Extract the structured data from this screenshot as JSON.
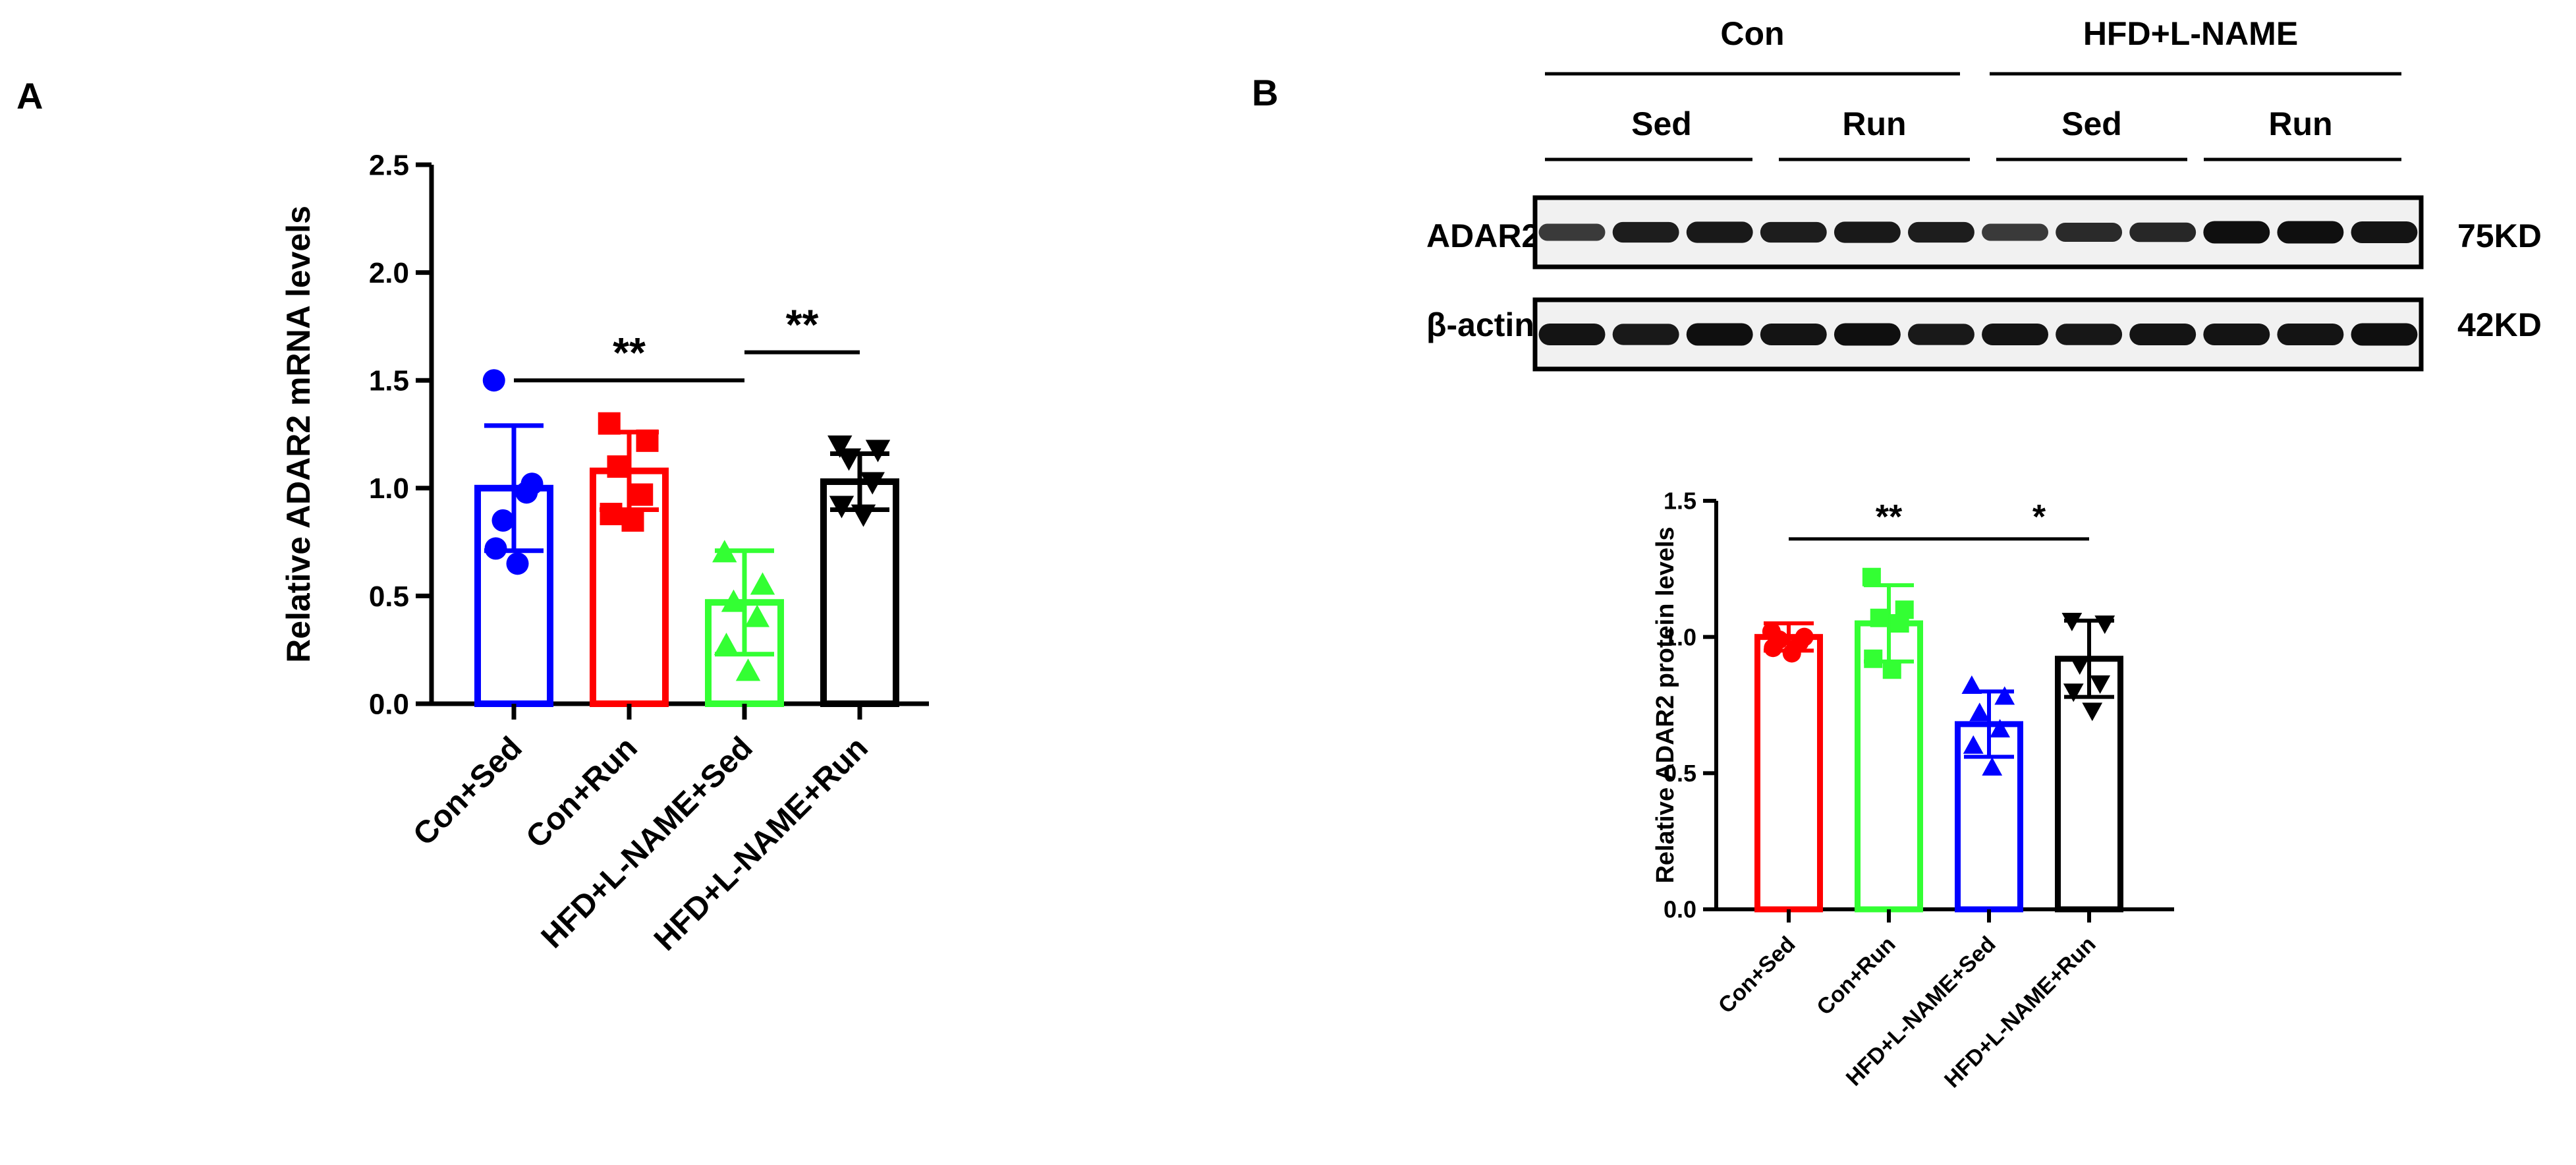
{
  "panels": {
    "a": {
      "letter": "A"
    },
    "b": {
      "letter": "B"
    }
  },
  "blot": {
    "groups": [
      "Con",
      "HFD+L-NAME"
    ],
    "subgroups": [
      "Sed",
      "Run",
      "Sed",
      "Run"
    ],
    "rows": [
      {
        "name": "ADAR2",
        "weight": "75KD",
        "intensities": [
          0.55,
          0.85,
          0.9,
          0.85,
          0.9,
          0.85,
          0.55,
          0.72,
          0.75,
          1.0,
          1.0,
          0.95
        ]
      },
      {
        "name": "β-actin",
        "weight": "42KD",
        "intensities": [
          0.95,
          0.9,
          1.0,
          0.95,
          1.0,
          0.9,
          0.95,
          0.92,
          0.95,
          0.95,
          0.95,
          1.0
        ]
      }
    ]
  },
  "chart_data": [
    {
      "type": "bar",
      "title": "",
      "ylabel": "Relative ADAR2 mRNA levels",
      "xlabel": "",
      "categories": [
        "Con+Sed",
        "Con+Run",
        "HFD+L-NAME+Sed",
        "HFD+L-NAME+Run"
      ],
      "values": [
        1.0,
        1.08,
        0.47,
        1.03
      ],
      "errors": [
        0.29,
        0.18,
        0.24,
        0.13
      ],
      "colors": [
        "#0000ff",
        "#ff0000",
        "#33ff33",
        "#000000"
      ],
      "markers": [
        "circle",
        "square",
        "triangle-up",
        "triangle-down"
      ],
      "points": [
        [
          1.5,
          1.02,
          0.85,
          0.98,
          0.72,
          0.65
        ],
        [
          1.3,
          1.22,
          1.1,
          0.97,
          0.88,
          0.85
        ],
        [
          0.7,
          0.55,
          0.47,
          0.4,
          0.27,
          0.15
        ],
        [
          1.2,
          1.18,
          1.14,
          1.03,
          0.92,
          0.88
        ]
      ],
      "ylim": [
        0,
        2.5
      ],
      "yticks": [
        "0.0",
        "0.5",
        "1.0",
        "1.5",
        "2.0",
        "2.5"
      ],
      "significance": [
        {
          "from": 0,
          "to": 2,
          "y": 1.5,
          "label": "**"
        },
        {
          "from": 2,
          "to": 3,
          "y": 1.63,
          "label": "**"
        }
      ]
    },
    {
      "type": "bar",
      "title": "",
      "ylabel": "Relative ADAR2 protein levels",
      "xlabel": "",
      "categories": [
        "Con+Sed",
        "Con+Run",
        "HFD+L-NAME+Sed",
        "HFD+L-NAME+Run"
      ],
      "values": [
        1.0,
        1.05,
        0.68,
        0.92
      ],
      "errors": [
        0.05,
        0.14,
        0.12,
        0.14
      ],
      "colors": [
        "#ff0000",
        "#33ff33",
        "#0000ff",
        "#000000"
      ],
      "markers": [
        "circle",
        "square",
        "triangle-up",
        "triangle-down"
      ],
      "points": [
        [
          1.02,
          1.0,
          0.99,
          0.98,
          0.96,
          0.94
        ],
        [
          1.22,
          1.1,
          1.07,
          1.05,
          0.92,
          0.88
        ],
        [
          0.82,
          0.78,
          0.72,
          0.66,
          0.6,
          0.52
        ],
        [
          1.06,
          1.05,
          0.9,
          0.83,
          0.8,
          0.73
        ]
      ],
      "ylim": [
        0,
        1.5
      ],
      "yticks": [
        "0.0",
        "0.5",
        "1.0",
        "1.5"
      ],
      "significance": [
        {
          "from": 0,
          "to": 2,
          "y": 1.36,
          "label": "**"
        },
        {
          "from": 2,
          "to": 3,
          "y": 1.36,
          "label": "*"
        }
      ]
    }
  ]
}
